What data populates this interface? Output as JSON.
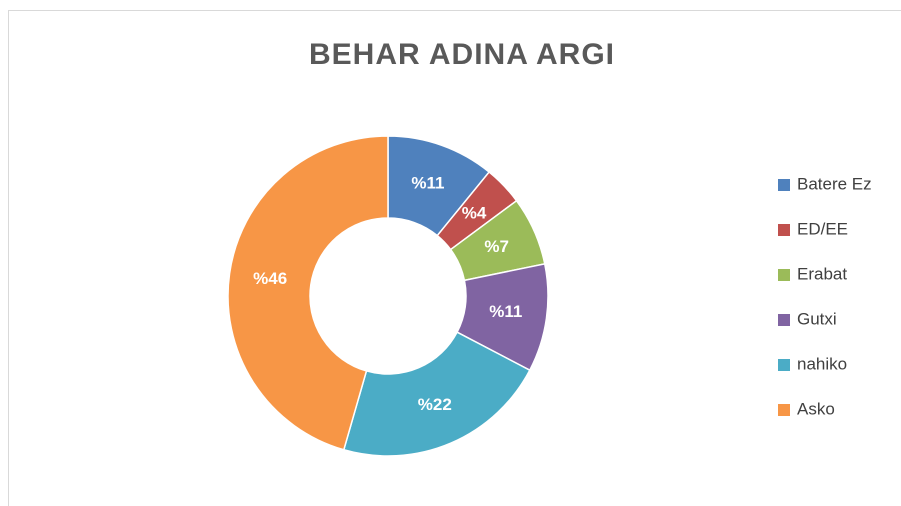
{
  "chart_data": {
    "type": "donut",
    "title": "BEHAR ADINA ARGI",
    "categories": [
      "Batere Ez",
      "ED/EE",
      "Erabat",
      "Gutxi",
      "nahiko",
      "Asko"
    ],
    "values": [
      11,
      4,
      7,
      11,
      22,
      46
    ],
    "value_labels": [
      "%11",
      "%4",
      "%7",
      "%11",
      "%22",
      "%46"
    ],
    "colors": [
      "#4f81bd",
      "#c0504d",
      "#9bbb59",
      "#8064a2",
      "#4bacc6",
      "#f79646"
    ],
    "legend": "right"
  }
}
